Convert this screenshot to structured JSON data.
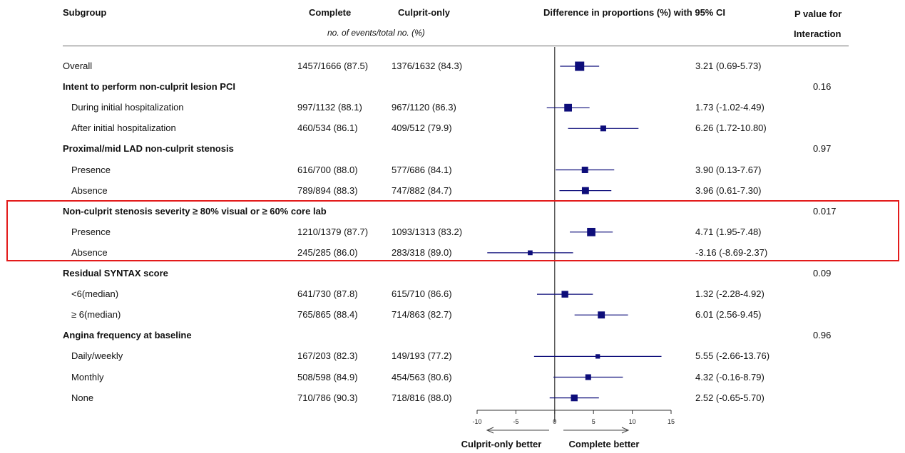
{
  "headers": {
    "subgroup": "Subgroup",
    "complete": "Complete",
    "culprit_only": "Culprit-only",
    "events_note": "no. of events/total no. (%)",
    "difference": "Difference in proportions (%) with 95% CI",
    "p_value_line1": "P value for",
    "p_value_line2": "Interaction"
  },
  "rows": [
    {
      "label": "Overall",
      "group": false,
      "complete": "1457/1666 (87.5)",
      "culprit": "1376/1632 (84.3)",
      "ci_text": "3.21 (0.69-5.73)",
      "p": ""
    },
    {
      "label": "Intent to perform non-culprit lesion PCI",
      "group": true,
      "complete": "",
      "culprit": "",
      "ci_text": "",
      "p": "0.16"
    },
    {
      "label": "During initial hospitalization",
      "group": false,
      "complete": "997/1132 (88.1)",
      "culprit": "967/1120 (86.3)",
      "ci_text": "1.73 (-1.02-4.49)",
      "p": ""
    },
    {
      "label": "After initial hospitalization",
      "group": false,
      "complete": "460/534 (86.1)",
      "culprit": "409/512 (79.9)",
      "ci_text": "6.26 (1.72-10.80)",
      "p": ""
    },
    {
      "label": "Proximal/mid LAD non-culprit stenosis",
      "group": true,
      "complete": "",
      "culprit": "",
      "ci_text": "",
      "p": "0.97"
    },
    {
      "label": "Presence",
      "group": false,
      "complete": "616/700 (88.0)",
      "culprit": "577/686 (84.1)",
      "ci_text": "3.90 (0.13-7.67)",
      "p": ""
    },
    {
      "label": "Absence",
      "group": false,
      "complete": "789/894 (88.3)",
      "culprit": "747/882 (84.7)",
      "ci_text": "3.96 (0.61-7.30)",
      "p": ""
    },
    {
      "label": "Non-culprit stenosis severity ≥ 80% visual or ≥ 60% core lab",
      "group": true,
      "complete": "",
      "culprit": "",
      "ci_text": "",
      "p": "0.017"
    },
    {
      "label": "Presence",
      "group": false,
      "complete": "1210/1379 (87.7)",
      "culprit": "1093/1313 (83.2)",
      "ci_text": "4.71 (1.95-7.48)",
      "p": ""
    },
    {
      "label": "Absence",
      "group": false,
      "complete": "245/285 (86.0)",
      "culprit": "283/318 (89.0)",
      "ci_text": "-3.16 (-8.69-2.37)",
      "p": ""
    },
    {
      "label": "Residual SYNTAX score",
      "group": true,
      "complete": "",
      "culprit": "",
      "ci_text": "",
      "p": "0.09"
    },
    {
      "label": "<6(median)",
      "group": false,
      "complete": "641/730 (87.8)",
      "culprit": "615/710 (86.6)",
      "ci_text": "1.32 (-2.28-4.92)",
      "p": ""
    },
    {
      "label": "≥ 6(median)",
      "group": false,
      "complete": "765/865 (88.4)",
      "culprit": "714/863 (82.7)",
      "ci_text": "6.01 (2.56-9.45)",
      "p": ""
    },
    {
      "label": "Angina frequency at baseline",
      "group": true,
      "complete": "",
      "culprit": "",
      "ci_text": "",
      "p": "0.96"
    },
    {
      "label": "Daily/weekly",
      "group": false,
      "complete": "167/203 (82.3)",
      "culprit": "149/193 (77.2)",
      "ci_text": "5.55 (-2.66-13.76)",
      "p": ""
    },
    {
      "label": "Monthly",
      "group": false,
      "complete": "508/598 (84.9)",
      "culprit": "454/563 (80.6)",
      "ci_text": "4.32 (-0.16-8.79)",
      "p": ""
    },
    {
      "label": "None",
      "group": false,
      "complete": "710/786 (90.3)",
      "culprit": "718/816 (88.0)",
      "ci_text": "2.52 (-0.65-5.70)",
      "p": ""
    }
  ],
  "chart_data": {
    "type": "forest",
    "xlim": [
      -10,
      15
    ],
    "ticks": [
      "-10",
      "-5",
      "0",
      "5",
      "10",
      "15"
    ],
    "reference_line": 0,
    "left_arrow_label": "Culprit-only better",
    "right_arrow_label": "Complete better",
    "marker_color": "#0d0d7a",
    "highlight_color": "#e31b1b",
    "series": [
      {
        "row": 0,
        "estimate": 3.21,
        "lower": 0.69,
        "upper": 5.73,
        "weight": 1.0
      },
      {
        "row": 2,
        "estimate": 1.73,
        "lower": -1.02,
        "upper": 4.49,
        "weight": 0.75
      },
      {
        "row": 3,
        "estimate": 6.26,
        "lower": 1.72,
        "upper": 10.8,
        "weight": 0.45
      },
      {
        "row": 5,
        "estimate": 3.9,
        "lower": 0.13,
        "upper": 7.67,
        "weight": 0.55
      },
      {
        "row": 6,
        "estimate": 3.96,
        "lower": 0.61,
        "upper": 7.3,
        "weight": 0.65
      },
      {
        "row": 8,
        "estimate": 4.71,
        "lower": 1.95,
        "upper": 7.48,
        "weight": 0.85
      },
      {
        "row": 9,
        "estimate": -3.16,
        "lower": -8.69,
        "upper": 2.37,
        "weight": 0.3
      },
      {
        "row": 11,
        "estimate": 1.32,
        "lower": -2.28,
        "upper": 4.92,
        "weight": 0.6
      },
      {
        "row": 12,
        "estimate": 6.01,
        "lower": 2.56,
        "upper": 9.45,
        "weight": 0.65
      },
      {
        "row": 14,
        "estimate": 5.55,
        "lower": -2.66,
        "upper": 13.76,
        "weight": 0.25
      },
      {
        "row": 15,
        "estimate": 4.32,
        "lower": -0.16,
        "upper": 8.79,
        "weight": 0.45
      },
      {
        "row": 16,
        "estimate": 2.52,
        "lower": -0.65,
        "upper": 5.7,
        "weight": 0.6
      }
    ]
  }
}
